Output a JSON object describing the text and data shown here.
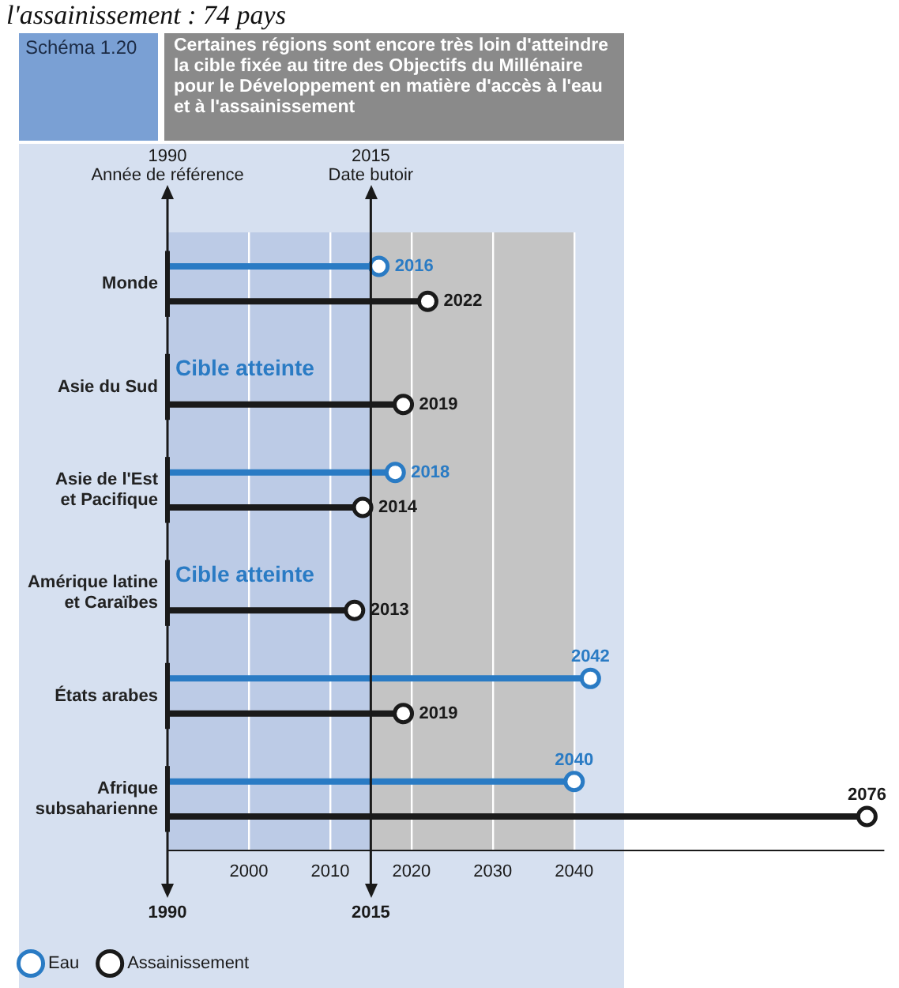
{
  "chart_data": {
    "type": "lollipop",
    "orientation": "horizontal",
    "title": "Certaines régions sont encore très loin d'atteindre la cible fixée au titre des Objectifs du Millénaire pour le Développement en matière d'accès à l'eau et à l'assainissement",
    "subtitle": "Schéma 1.20",
    "categories": [
      "Monde",
      "Asie du Sud",
      "Asie de l'Est et Pacifique",
      "Amérique latine et Caraïbes",
      "États arabes",
      "Afrique subsaharienne"
    ],
    "series": [
      {
        "name": "Eau",
        "color": "#2a7bc4",
        "values": [
          2016,
          null,
          2018,
          null,
          2042,
          2040
        ]
      },
      {
        "name": "Assainissement",
        "color": "#1a1a1a",
        "values": [
          2022,
          2019,
          2014,
          2013,
          2019,
          2076
        ]
      }
    ],
    "data_labels": true,
    "xlim": [
      1990,
      2078
    ],
    "xticks": [
      2000,
      2010,
      2020,
      2030,
      2040
    ],
    "grid": "x",
    "legend": "bottom",
    "marker": "circle",
    "ref_lines": [
      {
        "axis": "x",
        "value": 1990,
        "label": "1990\nAnnée de référence",
        "color": "#1a1a1a"
      },
      {
        "axis": "x",
        "value": 2015,
        "label": "2015\nDate butoir",
        "color": "#1a1a1a"
      }
    ],
    "bands": [
      {
        "axis": "x",
        "from": 1990,
        "to": 2015,
        "color": "#bccbe6"
      },
      {
        "axis": "x",
        "from": 2015,
        "to": 2040,
        "color": "#c4c4c4"
      }
    ],
    "annotations": [
      "l'assainissement : 74 pays",
      "Cible atteinte",
      "Cible atteinte",
      "1990",
      "2015"
    ]
  }
}
